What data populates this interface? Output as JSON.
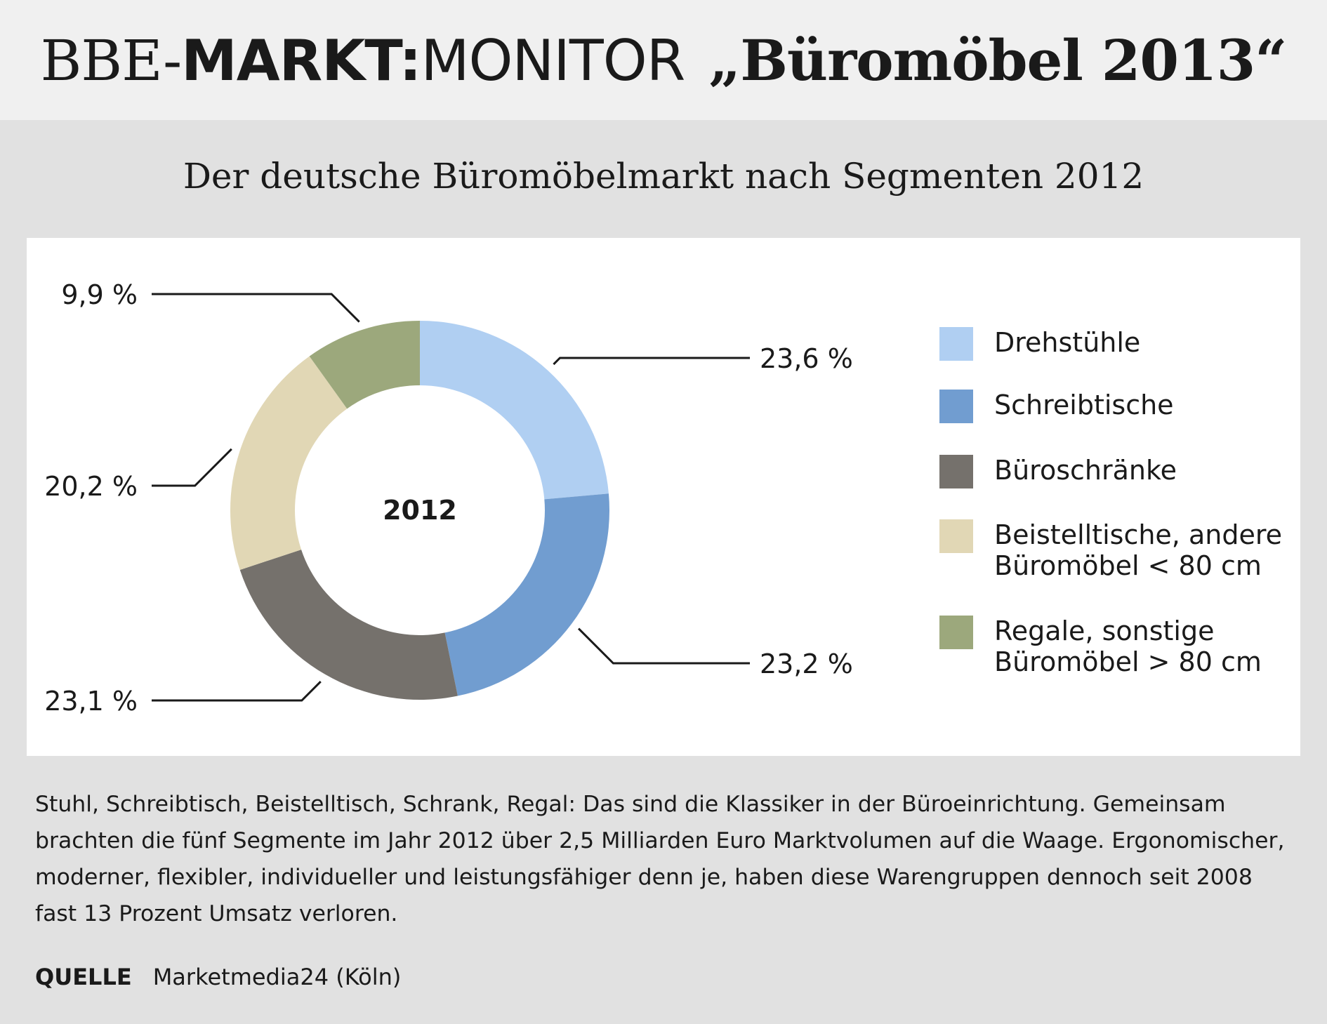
{
  "header": {
    "brand": "BBE-",
    "brand_bold": "MARKT:",
    "brand_light": "MONITOR",
    "subject": "„Büromöbel 2013“"
  },
  "subtitle": "Der deutsche Büromöbelmarkt nach Segmenten 2012",
  "chart_data": {
    "type": "pie",
    "variant": "donut",
    "center_label": "2012",
    "categories": [
      "Drehstühle",
      "Schreibtische",
      "Büroschränke",
      "Beistelltische, andere Büromöbel < 80 cm",
      "Regale, sonstige Büromöbel > 80 cm"
    ],
    "values": [
      23.6,
      23.2,
      23.1,
      20.2,
      9.9
    ],
    "value_labels": [
      "23,6 %",
      "23,2 %",
      "23,1 %",
      "20,2 %",
      "9,9 %"
    ],
    "colors": [
      "#b0cff2",
      "#719dd0",
      "#75716c",
      "#e1d7b5",
      "#9ca87c"
    ],
    "legend_position": "right",
    "start": "top, clockwise"
  },
  "legend": [
    {
      "label": "Drehstühle",
      "color": "#b0cff2"
    },
    {
      "label": "Schreibtische",
      "color": "#719dd0"
    },
    {
      "label": "Büroschränke",
      "color": "#75716c"
    },
    {
      "label": "Beistelltische, andere\nBüromöbel < 80 cm",
      "color": "#e1d7b5"
    },
    {
      "label": "Regale, sonstige\nBüromöbel > 80 cm",
      "color": "#9ca87c"
    }
  ],
  "body_text": "Stuhl, Schreibtisch, Beistelltisch, Schrank, Regal: Das sind die Klassiker in der Büroeinrichtung. Gemeinsam brachten die fünf Segmente im Jahr 2012 über 2,5 Milliarden Euro Marktvolumen auf die Waage. Ergonomischer, moderner, flexibler, individueller und leistungsfähiger denn je, haben diese Warengruppen dennoch seit 2008 fast 13 Prozent Umsatz verloren.",
  "source": {
    "label": "QUELLE",
    "value": "Marketmedia24 (Köln)"
  }
}
